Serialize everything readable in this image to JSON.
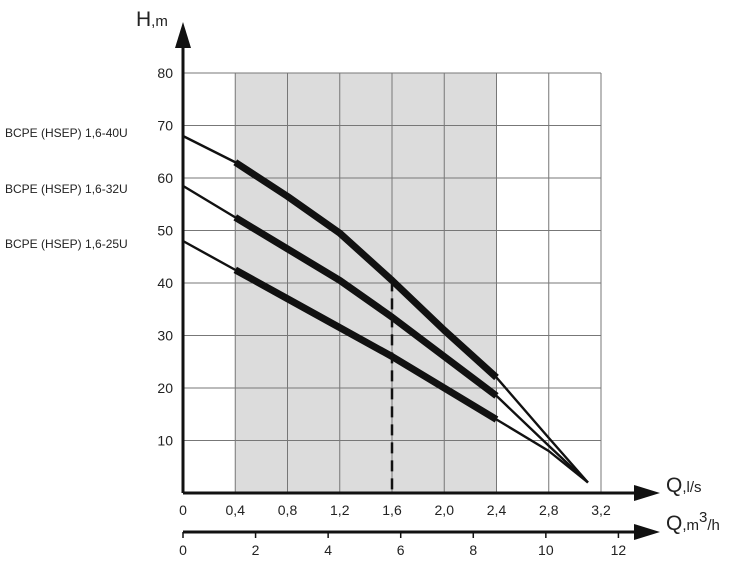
{
  "chart_data": {
    "type": "line",
    "y_axis": {
      "label": "H",
      "unit": ",m",
      "ticks": [
        10,
        20,
        30,
        40,
        50,
        60,
        70,
        80
      ],
      "range": [
        0,
        80
      ]
    },
    "x_axis": {
      "label": "Q",
      "unit": ",l/s",
      "ticks": [
        "0",
        "0,4",
        "0,8",
        "1,2",
        "1,6",
        "2,0",
        "2,4",
        "2,8",
        "3,2"
      ],
      "tick_values": [
        0,
        0.4,
        0.8,
        1.2,
        1.6,
        2.0,
        2.4,
        2.8,
        3.2
      ],
      "range": [
        0,
        3.6
      ]
    },
    "x_axis_secondary": {
      "label": "Q",
      "unit_prefix": ",m",
      "unit_sup": "3",
      "unit_suffix": "/h",
      "ticks": [
        "0",
        "2",
        "4",
        "6",
        "8",
        "10",
        "12"
      ],
      "tick_values": [
        0,
        2,
        4,
        6,
        8,
        10,
        12
      ],
      "scale_per_lps": 3.6
    },
    "working_range": [
      0.4,
      2.4
    ],
    "duty_point_q": 1.6,
    "grid": true,
    "series": [
      {
        "name": "BCPE (HSEP) 1,6-40U",
        "x": [
          0,
          0.4,
          0.8,
          1.2,
          1.6,
          2.0,
          2.4,
          2.8,
          3.1
        ],
        "y": [
          68,
          63,
          56.5,
          49.5,
          40.5,
          31,
          22,
          10.5,
          2
        ],
        "highlight": [
          0.4,
          2.4
        ]
      },
      {
        "name": "BCPE (HSEP) 1,6-32U",
        "x": [
          0,
          0.4,
          0.8,
          1.2,
          1.6,
          2.0,
          2.4,
          2.8,
          3.1
        ],
        "y": [
          58.5,
          52.5,
          46.5,
          40.5,
          33.5,
          26,
          18.5,
          9,
          2
        ],
        "highlight": [
          0.4,
          2.4
        ]
      },
      {
        "name": "BCPE (HSEP) 1,6-25U",
        "x": [
          0,
          0.4,
          0.8,
          1.2,
          1.6,
          2.0,
          2.4,
          2.8,
          3.1
        ],
        "y": [
          48,
          42.5,
          37,
          31.5,
          26,
          20,
          14,
          8,
          2
        ],
        "highlight": [
          0.4,
          2.4
        ]
      }
    ]
  }
}
